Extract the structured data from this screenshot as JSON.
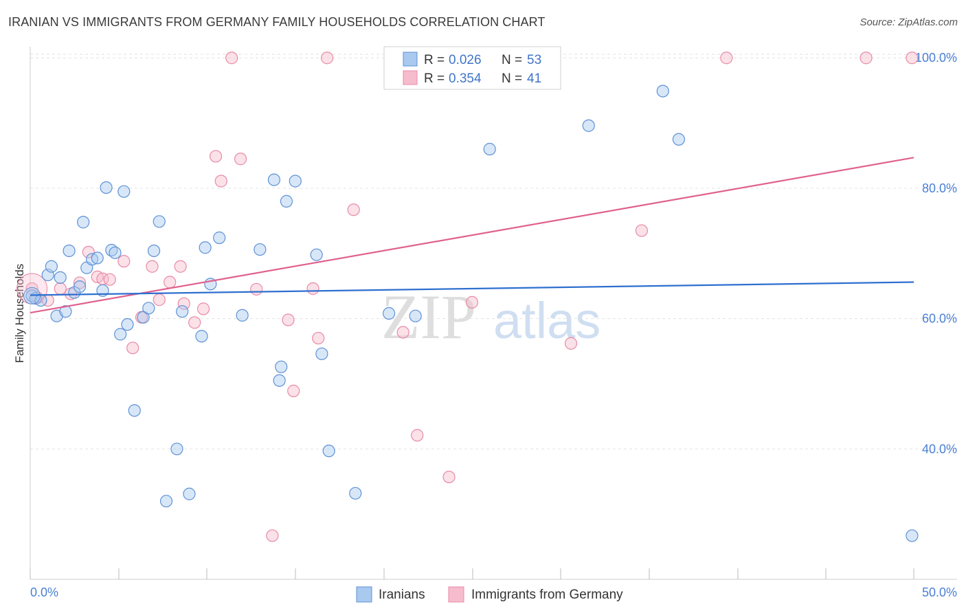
{
  "header": {
    "title": "IRANIAN VS IMMIGRANTS FROM GERMANY FAMILY HOUSEHOLDS CORRELATION CHART",
    "source": "Source: ZipAtlas.com"
  },
  "watermark": {
    "zip": "ZIP",
    "atlas": "atlas"
  },
  "legend": {
    "r_label": "R =",
    "n_label": "N =",
    "rows": [
      {
        "r": "0.026",
        "n": "53"
      },
      {
        "r": "0.354",
        "n": "41"
      }
    ]
  },
  "colors": {
    "blue_fill": "#a9c9ef",
    "blue_stroke": "#5d91d6",
    "blue_line": "#2e6fcf",
    "pink_fill": "#f6bccd",
    "pink_stroke": "#e88aa7",
    "pink_line": "#e0608e",
    "tick_text": "#4a7fd4",
    "grid": "#e2e2e2"
  },
  "chart_data": {
    "type": "scatter",
    "title": "IRANIAN VS IMMIGRANTS FROM GERMANY FAMILY HOUSEHOLDS CORRELATION CHART",
    "xlabel": "",
    "ylabel": "Family Households",
    "xlim": [
      0,
      50
    ],
    "ylim": [
      20,
      101.5
    ],
    "x_tick_labels": [
      "0.0%",
      "50.0%"
    ],
    "y_ticks": [
      40,
      60,
      80,
      100
    ],
    "y_tick_labels": [
      "40.0%",
      "60.0%",
      "80.0%",
      "100.0%"
    ],
    "grid": true,
    "legend_position": "top-center",
    "series": [
      {
        "name": "Iranians",
        "r": 0.026,
        "n": 53,
        "trend": {
          "x": [
            0,
            50
          ],
          "y": [
            63.6,
            65.6
          ]
        },
        "points": [
          [
            0.1,
            63.5
          ],
          [
            0.3,
            63.1
          ],
          [
            0.6,
            62.8
          ],
          [
            1.0,
            66.7
          ],
          [
            1.2,
            68.0
          ],
          [
            1.5,
            60.4
          ],
          [
            1.7,
            66.3
          ],
          [
            2.0,
            61.1
          ],
          [
            2.2,
            70.4
          ],
          [
            2.5,
            64.0
          ],
          [
            2.8,
            64.9
          ],
          [
            3.0,
            74.8
          ],
          [
            3.2,
            67.8
          ],
          [
            3.5,
            69.1
          ],
          [
            3.8,
            69.3
          ],
          [
            4.1,
            64.3
          ],
          [
            4.3,
            80.1
          ],
          [
            4.6,
            70.5
          ],
          [
            4.8,
            70.1
          ],
          [
            5.1,
            57.6
          ],
          [
            5.3,
            79.5
          ],
          [
            5.5,
            59.1
          ],
          [
            5.9,
            45.9
          ],
          [
            6.4,
            60.2
          ],
          [
            6.7,
            61.6
          ],
          [
            7.0,
            70.4
          ],
          [
            7.3,
            74.9
          ],
          [
            7.7,
            32.0
          ],
          [
            8.3,
            40.0
          ],
          [
            8.6,
            61.1
          ],
          [
            9.0,
            33.1
          ],
          [
            9.7,
            57.3
          ],
          [
            9.9,
            70.9
          ],
          [
            10.2,
            65.3
          ],
          [
            10.7,
            72.4
          ],
          [
            12.0,
            60.5
          ],
          [
            13.0,
            70.6
          ],
          [
            13.8,
            81.3
          ],
          [
            14.1,
            50.5
          ],
          [
            14.2,
            52.6
          ],
          [
            14.5,
            78.0
          ],
          [
            15.0,
            81.1
          ],
          [
            16.2,
            69.8
          ],
          [
            16.5,
            54.6
          ],
          [
            16.9,
            39.7
          ],
          [
            18.4,
            33.2
          ],
          [
            20.3,
            60.8
          ],
          [
            21.8,
            60.4
          ],
          [
            26.0,
            86.0
          ],
          [
            31.6,
            89.6
          ],
          [
            35.8,
            94.9
          ],
          [
            36.7,
            87.5
          ],
          [
            49.9,
            26.7
          ]
        ]
      },
      {
        "name": "Immigrants from Germany",
        "r": 0.354,
        "n": 41,
        "trend": {
          "x": [
            0,
            50
          ],
          "y": [
            60.9,
            84.7
          ]
        },
        "points": [
          [
            0.1,
            64.6
          ],
          [
            0.4,
            63.2
          ],
          [
            1.0,
            62.8
          ],
          [
            1.7,
            64.6
          ],
          [
            2.3,
            63.8
          ],
          [
            2.8,
            65.5
          ],
          [
            3.3,
            70.2
          ],
          [
            3.8,
            66.4
          ],
          [
            4.1,
            66.1
          ],
          [
            4.5,
            66.0
          ],
          [
            5.3,
            68.8
          ],
          [
            5.8,
            55.5
          ],
          [
            6.3,
            60.2
          ],
          [
            6.9,
            68.0
          ],
          [
            7.3,
            62.9
          ],
          [
            7.9,
            65.6
          ],
          [
            8.5,
            68.0
          ],
          [
            8.7,
            62.3
          ],
          [
            9.3,
            59.4
          ],
          [
            9.8,
            61.5
          ],
          [
            10.5,
            84.9
          ],
          [
            10.8,
            81.1
          ],
          [
            11.4,
            100.0
          ],
          [
            11.9,
            84.5
          ],
          [
            12.8,
            64.5
          ],
          [
            13.7,
            26.7
          ],
          [
            14.6,
            59.8
          ],
          [
            14.9,
            48.9
          ],
          [
            16.0,
            64.6
          ],
          [
            16.3,
            57.0
          ],
          [
            16.8,
            100.0
          ],
          [
            18.3,
            76.7
          ],
          [
            21.1,
            57.9
          ],
          [
            21.9,
            42.1
          ],
          [
            23.7,
            35.7
          ],
          [
            25.0,
            62.5
          ],
          [
            30.6,
            56.2
          ],
          [
            34.6,
            73.5
          ],
          [
            39.4,
            100.0
          ],
          [
            47.3,
            100.0
          ],
          [
            49.9,
            100.0
          ]
        ]
      }
    ]
  },
  "bottom_legend": {
    "items": [
      {
        "label": "Iranians"
      },
      {
        "label": "Immigrants from Germany"
      }
    ]
  }
}
